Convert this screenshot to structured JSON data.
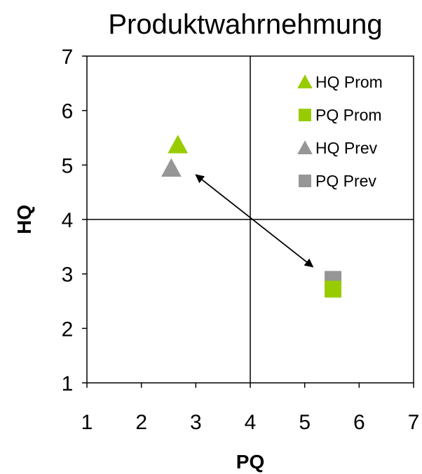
{
  "chart_data": {
    "type": "scatter",
    "title": "Produktwahrnehmung",
    "xlabel": "PQ",
    "ylabel": "HQ",
    "xlim": [
      1,
      7
    ],
    "ylim": [
      1,
      7
    ],
    "xticks": [
      "1",
      "2",
      "3",
      "4",
      "5",
      "6",
      "7"
    ],
    "yticks": [
      "1",
      "2",
      "3",
      "4",
      "5",
      "6",
      "7"
    ],
    "grid": false,
    "reference_lines": {
      "x": 4,
      "y": 4
    },
    "legend_position": "top-right",
    "series": [
      {
        "name": "HQ Prom",
        "marker": "triangle",
        "color": "#99cc00",
        "points": [
          {
            "x": 2.67,
            "y": 5.37
          }
        ]
      },
      {
        "name": "PQ Prom",
        "marker": "square",
        "color": "#99cc00",
        "points": [
          {
            "x": 5.52,
            "y": 2.72
          }
        ]
      },
      {
        "name": "HQ Prev",
        "marker": "triangle",
        "color": "#969696",
        "points": [
          {
            "x": 2.55,
            "y": 4.94
          }
        ]
      },
      {
        "name": "PQ Prev",
        "marker": "square",
        "color": "#969696",
        "points": [
          {
            "x": 5.52,
            "y": 2.9
          }
        ]
      }
    ],
    "annotations": [
      {
        "type": "double-arrow",
        "from": {
          "x": 3.0,
          "y": 4.82
        },
        "to": {
          "x": 5.15,
          "y": 3.13
        }
      }
    ]
  }
}
